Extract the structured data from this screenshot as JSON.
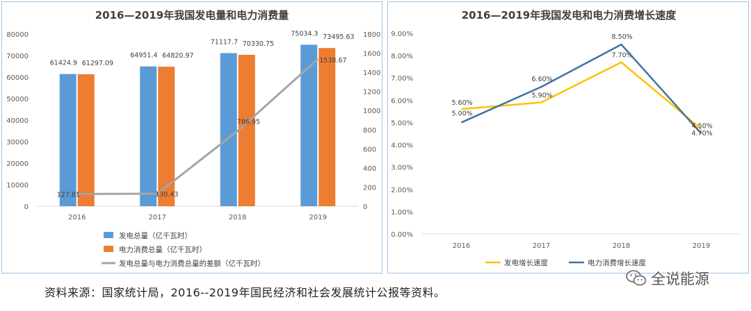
{
  "chart_data": [
    {
      "type": "bar",
      "title": "2016—2019年我国发电量和电力消费量",
      "categories": [
        "2016",
        "2017",
        "2018",
        "2019"
      ],
      "series": [
        {
          "name": "发电总量（亿千瓦时）",
          "type": "bar",
          "axis": "left",
          "color": "#5b9bd5",
          "values": [
            61424.9,
            64951.4,
            71117.7,
            75034.3
          ],
          "labels": [
            "61424.9",
            "64951.4",
            "71117.7",
            "75034.3"
          ]
        },
        {
          "name": "电力消费总量（亿千瓦时）",
          "type": "bar",
          "axis": "left",
          "color": "#ed7d31",
          "values": [
            61297.09,
            64820.97,
            70330.75,
            73495.63
          ],
          "labels": [
            "61297.09",
            "64820.97",
            "70330.75",
            "73495.63"
          ]
        },
        {
          "name": "发电总量与电力消费总量的差额（亿千瓦时）",
          "type": "line",
          "axis": "right",
          "color": "#a5a5a5",
          "values": [
            127.81,
            130.43,
            786.95,
            1538.67
          ],
          "labels": [
            "127.81",
            "130.43",
            "786.95",
            "1538.67"
          ]
        }
      ],
      "y_left": {
        "min": 0,
        "max": 80000,
        "ticks": [
          "0",
          "10000",
          "20000",
          "30000",
          "40000",
          "50000",
          "60000",
          "70000",
          "80000"
        ]
      },
      "y_right": {
        "min": 0,
        "max": 1800,
        "ticks": [
          "0",
          "200",
          "400",
          "600",
          "800",
          "1000",
          "1200",
          "1400",
          "1600",
          "1800"
        ]
      },
      "grid": false,
      "legend_position": "bottom"
    },
    {
      "type": "line",
      "title": "2016—2019年我国发电和电力消费增长速度",
      "categories": [
        "2016",
        "2017",
        "2018",
        "2019"
      ],
      "series": [
        {
          "name": "发电增长速度",
          "color": "#ffc000",
          "values": [
            5.6,
            5.9,
            7.7,
            4.7
          ],
          "labels": [
            "5.60%",
            "5.90%",
            "7.70%",
            "4.70%"
          ]
        },
        {
          "name": "电力消费增长速度",
          "color": "#44729e",
          "values": [
            5.0,
            6.6,
            8.5,
            4.5
          ],
          "labels": [
            "5.00%",
            "6.60%",
            "8.50%",
            "4.50%"
          ]
        }
      ],
      "y_axis": {
        "min": 0,
        "max": 9,
        "ticks": [
          "0.00%",
          "1.00%",
          "2.00%",
          "3.00%",
          "4.00%",
          "5.00%",
          "6.00%",
          "7.00%",
          "8.00%",
          "9.00%"
        ]
      },
      "grid": false,
      "legend_position": "bottom"
    }
  ],
  "footer": {
    "source": "资料来源：国家统计局，2016--2019年国民经济和社会发展统计公报等资料。",
    "brand": "全说能源",
    "brand_icon": "wechat-icon"
  }
}
